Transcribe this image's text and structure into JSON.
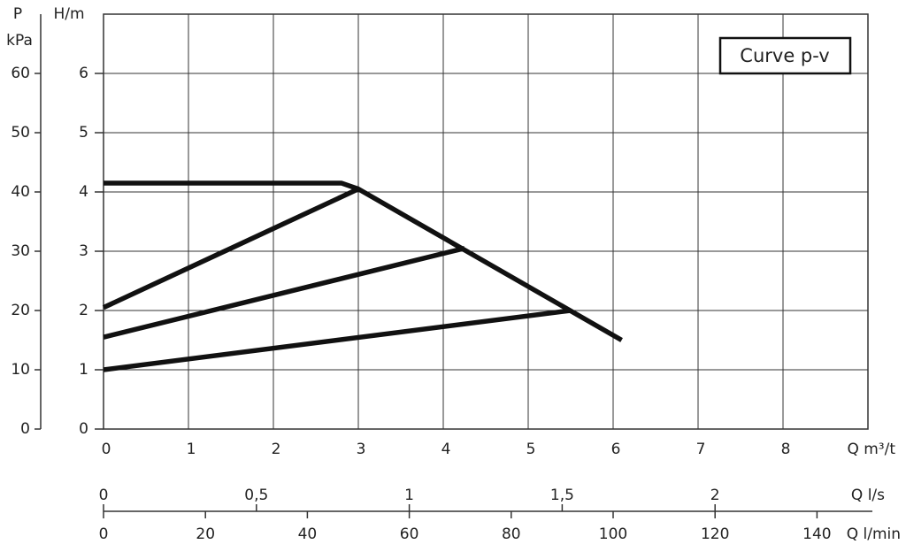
{
  "chart_data": {
    "type": "line",
    "h_label": "H/m",
    "p_label": "P",
    "p_unit": "kPa",
    "x_label": "Q m³/t",
    "x2_label": "Q l/s",
    "x3_label": "Q l/min",
    "annotation": "Curve  p-v",
    "xlim": [
      0,
      9
    ],
    "xticks": [
      0,
      1,
      2,
      3,
      4,
      5,
      6,
      7,
      8
    ],
    "ylim": [
      0,
      7
    ],
    "yticks": [
      0,
      1,
      2,
      3,
      4,
      5,
      6
    ],
    "y2lim": [
      0,
      70
    ],
    "y2ticks": [
      0,
      10,
      20,
      30,
      40,
      50,
      60
    ],
    "x2lim": [
      0,
      2.5
    ],
    "x2ticks": [
      0,
      {
        "value": 0.5,
        "label": "0,5"
      },
      1,
      {
        "value": 1.5,
        "label": "1,5"
      },
      2
    ],
    "x3lim": [
      0,
      150
    ],
    "x3ticks": [
      0,
      20,
      40,
      60,
      80,
      100,
      120,
      140
    ],
    "grid": true,
    "color": "#111111",
    "series": [
      {
        "x": [
          0,
          2.8,
          3.0,
          6.1
        ],
        "values": [
          4.15,
          4.15,
          4.05,
          1.5
        ]
      },
      {
        "x": [
          0,
          3.0
        ],
        "values": [
          2.05,
          4.05
        ]
      },
      {
        "x": [
          0,
          4.25
        ],
        "values": [
          1.55,
          3.05
        ]
      },
      {
        "x": [
          0,
          5.5
        ],
        "values": [
          1.0,
          2.0
        ]
      }
    ]
  }
}
